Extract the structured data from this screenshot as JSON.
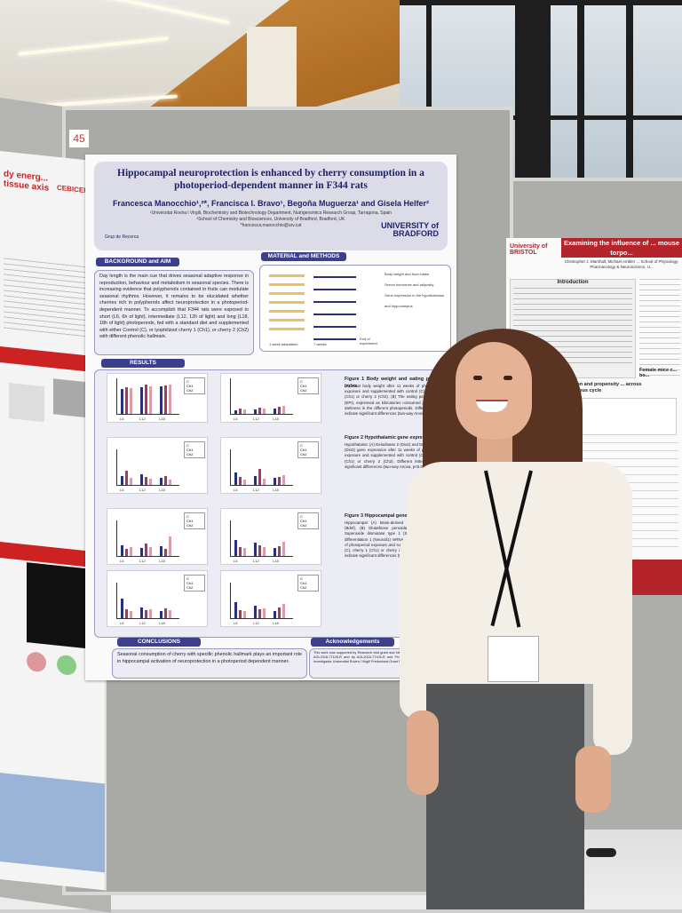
{
  "board": {
    "number": "45"
  },
  "main_poster": {
    "title": "Hippocampal neuroprotection is enhanced by cherry consumption in a photoperiod-dependent manner in F344 rats",
    "authors": "Francesca Manocchio¹,²*, Francisca I. Bravo¹, Begoña Muguerza¹ and Gisela Helfer²",
    "affiliation_1": "¹Universitat Rovira i Virgili, Biochemistry and Biotechnology Department, Nutrigenomics Research Group, Tarragona, Spain",
    "affiliation_2": "²School of Chemistry and Biosciences, University of Bradford, Bradford, UK",
    "email": "*francesca.manocchio@urv.cat",
    "group_logo": "Grup de Recerca",
    "university_logo": "UNIVERSITY of BRADFORD",
    "sections": {
      "background": "BACKGROUND and AIM",
      "methods": "MATERIAL and METHODS",
      "results": "RESULTS",
      "conclusions": "CONCLUSIONS",
      "acknowledgements": "Acknowledgements"
    },
    "background_text": "Day length is the main cue that drives seasonal adaptive response in reproduction, behaviour and metabolism in seasonal species. There is increasing evidence that polyphenols contained in fruits can modulate seasonal rhythms. However, it remains to be elucidated whether cherries rich in polyphenols affect neuroprotection in a photoperiod-dependent manner. To accomplish that F344 rats were exposed to short (L6, 6h of light), intermediate (L12, 12h of light) and long (L18, 18h of light) photoperiods, fed with a standard diet and supplemented with either Control (C), or lyophilized cherry 1 (Ch1), or cherry 2 (Ch2) with different phenolic hallmark.",
    "methods_labels": {
      "body_weight": "Body weight and food intake",
      "serum": "Serum hormones and adiposity",
      "gene_exp": "Gene expression in the hypothalamus and hippocampus",
      "weeks": "7 weeks",
      "end": "End of experiment",
      "adaptation": "1 week adaptation",
      "sac": "n=6 group"
    },
    "figure_captions": {
      "fig1": "Figure 1 Body weight and eating pattern index",
      "fig1_text": "(A) Final body weight after 11 weeks of photoperiod exposure and supplemented with control (C), cherry 1 (Ch1) or cherry 2 (Ch2). (B) The eating pattern index (EPI), expressed as kilocalories consumed per hour of darkness in the different photoperiods. Different letters indicate significant differences (two-way Anova, p<0.05).",
      "fig2": "Figure 2 Hypothalamic gene expression",
      "fig2_text": "Hypothalamic (A) Deiodinase 2 (Dio2) and Deiodinase 3 (Dio3) gene expression after 11 weeks of photoperiod exposure and supplemented with control (C), cherry 1 (Ch1) or cherry 2 (Ch2). Different letters indicate significant differences (two-way Anova, p<0.05).",
      "fig3": "Figure 3 Hippocampal gene expression",
      "fig3_text": "Hippocampal (A) Brain-derived neurotrophic factor (Bdnf), (B) Glutathione peroxidase 1 (Gpx1), (C) Superoxide dismutase type 1 (Sod1) and (D) Cell differentiation 1 (Neurod1) mRNA levels after 11 weeks of photoperiod exposure and supplemented with control (C), cherry 1 (Ch1) or cherry 2 (Ch2). Different letters indicate significant differences (two-way Anova, p<0.05)."
    },
    "legend": [
      "C",
      "Ch1",
      "Ch2"
    ],
    "x_ticks": [
      "L6",
      "L12",
      "L18"
    ],
    "conclusions_text": "Seasonal consumption of cherry with specific phenolic hallmark plays an important role in hippocampal activation of neuroprotection in a photoperiod dependent manner.",
    "acknowledgements_text": "This work was supported by Research visit grant and Neuroendocrinology and by grant AGL2016-77105-R and by AGL2016-77105-R and Programa Formació de Personal Investigador Universitat Rovira i Virgili Predoctoral Grant Number 2018PMF-PIPF-64."
  },
  "right_poster": {
    "logo": "University of BRISTOL",
    "title": "Examining the influence of ... mouse torpo...",
    "authors": "Christopher J. Marshall, Michael Ambler ... School of Physiology, Pharmacology & Neuroscience, U...",
    "intro_head": "Introduction",
    "subhead": "... depth, duration and propensity ... across the female oestrous cycle",
    "female_mice": "Female mice c... bo..."
  },
  "left_poster": {
    "title_fragment": "dy energ... tissue axis",
    "logo": "CEBICEM"
  },
  "colors": {
    "poster_navy": "#1d1f6b",
    "section_blue": "#3b3f8c",
    "bristol_red": "#b3252b",
    "series_C": "#2b2f7a",
    "series_Ch1": "#a23a63",
    "series_Ch2": "#d9a0a8"
  }
}
